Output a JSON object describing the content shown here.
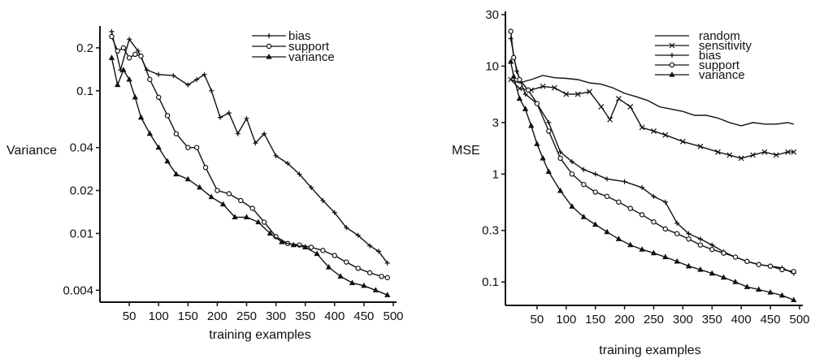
{
  "chart_data": [
    {
      "type": "line",
      "title": "",
      "xlabel": "training examples",
      "ylabel": "Variance",
      "yscale": "log",
      "xlim": [
        0,
        500
      ],
      "ylim": [
        0.0033,
        0.27
      ],
      "xticks": [
        "50",
        "100",
        "150",
        "200",
        "250",
        "300",
        "350",
        "400",
        "450",
        "500"
      ],
      "yticks": [
        "0.004",
        "0.01",
        "0.02",
        "0.04",
        "0.1",
        "0.2"
      ],
      "ytick_values": [
        0.004,
        0.01,
        0.02,
        0.04,
        0.1,
        0.2
      ],
      "legend_position": "top-right",
      "series": [
        {
          "name": "bias",
          "marker": "plus",
          "x": [
            20,
            35,
            50,
            65,
            80,
            100,
            125,
            150,
            165,
            178,
            190,
            205,
            220,
            235,
            250,
            265,
            280,
            300,
            320,
            340,
            360,
            380,
            400,
            420,
            440,
            460,
            475,
            490
          ],
          "y": [
            0.26,
            0.14,
            0.23,
            0.19,
            0.14,
            0.13,
            0.128,
            0.11,
            0.12,
            0.13,
            0.1,
            0.065,
            0.07,
            0.05,
            0.064,
            0.043,
            0.05,
            0.035,
            0.031,
            0.026,
            0.021,
            0.017,
            0.014,
            0.011,
            0.0097,
            0.0082,
            0.0075,
            0.0062
          ]
        },
        {
          "name": "support",
          "marker": "circle",
          "x": [
            20,
            30,
            40,
            50,
            60,
            70,
            85,
            100,
            115,
            130,
            150,
            165,
            180,
            200,
            220,
            240,
            260,
            280,
            300,
            320,
            340,
            360,
            380,
            400,
            420,
            440,
            460,
            480,
            490
          ],
          "y": [
            0.24,
            0.19,
            0.2,
            0.17,
            0.18,
            0.175,
            0.12,
            0.09,
            0.067,
            0.05,
            0.04,
            0.04,
            0.029,
            0.02,
            0.019,
            0.017,
            0.015,
            0.012,
            0.0095,
            0.0085,
            0.0083,
            0.008,
            0.0076,
            0.007,
            0.0063,
            0.0057,
            0.0053,
            0.005,
            0.0049
          ]
        },
        {
          "name": "variance",
          "marker": "triangle",
          "x": [
            20,
            30,
            40,
            50,
            60,
            70,
            85,
            100,
            115,
            130,
            150,
            170,
            190,
            210,
            230,
            250,
            270,
            290,
            310,
            330,
            350,
            370,
            390,
            410,
            430,
            450,
            470,
            490
          ],
          "y": [
            0.17,
            0.11,
            0.14,
            0.12,
            0.09,
            0.065,
            0.05,
            0.04,
            0.032,
            0.026,
            0.024,
            0.021,
            0.018,
            0.016,
            0.013,
            0.013,
            0.012,
            0.01,
            0.0087,
            0.0083,
            0.008,
            0.0072,
            0.0058,
            0.005,
            0.0045,
            0.0043,
            0.004,
            0.0037
          ]
        }
      ]
    },
    {
      "type": "line",
      "title": "",
      "xlabel": "training examples",
      "ylabel": "MSE",
      "yscale": "log",
      "xlim": [
        0,
        500
      ],
      "ylim": [
        0.065,
        30
      ],
      "xticks": [
        "50",
        "100",
        "150",
        "200",
        "250",
        "300",
        "350",
        "400",
        "450",
        "500"
      ],
      "yticks": [
        "0.1",
        "0.3",
        "1",
        "3",
        "10",
        "30"
      ],
      "ytick_values": [
        0.1,
        0.3,
        1,
        3,
        10,
        30
      ],
      "legend_position": "top-right",
      "series": [
        {
          "name": "random",
          "marker": "none",
          "x": [
            5,
            20,
            40,
            60,
            80,
            100,
            120,
            140,
            160,
            180,
            200,
            220,
            240,
            260,
            280,
            300,
            320,
            340,
            360,
            380,
            400,
            420,
            440,
            460,
            480,
            490
          ],
          "y": [
            7.5,
            7,
            7.5,
            8.2,
            7.8,
            7.7,
            7.5,
            7.0,
            6.8,
            6.3,
            5.6,
            5.2,
            4.8,
            4.2,
            4.0,
            3.8,
            3.5,
            3.5,
            3.3,
            3.0,
            2.8,
            3.0,
            2.9,
            2.9,
            3.0,
            2.9
          ]
        },
        {
          "name": "sensitivity",
          "marker": "x",
          "x": [
            5,
            20,
            40,
            60,
            80,
            100,
            120,
            140,
            160,
            175,
            190,
            210,
            230,
            250,
            270,
            300,
            330,
            360,
            380,
            400,
            420,
            440,
            460,
            480,
            490
          ],
          "y": [
            7.5,
            6.2,
            6.0,
            6.5,
            6.3,
            5.5,
            5.5,
            5.8,
            4.2,
            3.2,
            5.0,
            4.2,
            2.7,
            2.5,
            2.3,
            2.0,
            1.8,
            1.6,
            1.5,
            1.4,
            1.5,
            1.6,
            1.5,
            1.6,
            1.6
          ]
        },
        {
          "name": "bias",
          "marker": "plus",
          "x": [
            5,
            15,
            30,
            50,
            70,
            90,
            110,
            130,
            150,
            170,
            200,
            230,
            250,
            270,
            290,
            310,
            330,
            350,
            370,
            390,
            410,
            430,
            450,
            470,
            490
          ],
          "y": [
            18,
            9,
            5.5,
            4.5,
            3.0,
            1.6,
            1.3,
            1.1,
            1.0,
            0.9,
            0.85,
            0.75,
            0.62,
            0.55,
            0.35,
            0.28,
            0.25,
            0.22,
            0.19,
            0.17,
            0.155,
            0.145,
            0.14,
            0.135,
            0.12
          ]
        },
        {
          "name": "support",
          "marker": "circle",
          "x": [
            5,
            10,
            20,
            35,
            50,
            70,
            90,
            110,
            130,
            150,
            170,
            190,
            210,
            230,
            250,
            270,
            290,
            310,
            330,
            350,
            370,
            390,
            410,
            430,
            450,
            470,
            490
          ],
          "y": [
            21,
            12,
            7.5,
            6.0,
            4.5,
            2.5,
            1.4,
            1.0,
            0.8,
            0.68,
            0.62,
            0.55,
            0.48,
            0.42,
            0.36,
            0.31,
            0.28,
            0.25,
            0.22,
            0.2,
            0.185,
            0.17,
            0.155,
            0.145,
            0.14,
            0.13,
            0.125
          ]
        },
        {
          "name": "variance",
          "marker": "triangle",
          "x": [
            5,
            10,
            20,
            30,
            40,
            50,
            60,
            70,
            90,
            110,
            130,
            150,
            170,
            190,
            210,
            230,
            250,
            270,
            290,
            310,
            330,
            350,
            370,
            390,
            410,
            430,
            450,
            470,
            490
          ],
          "y": [
            11,
            8,
            5.0,
            4.0,
            2.8,
            1.9,
            1.4,
            1.05,
            0.7,
            0.5,
            0.4,
            0.34,
            0.29,
            0.25,
            0.22,
            0.2,
            0.185,
            0.17,
            0.155,
            0.14,
            0.13,
            0.12,
            0.11,
            0.1,
            0.09,
            0.085,
            0.08,
            0.075,
            0.068
          ]
        }
      ]
    }
  ]
}
